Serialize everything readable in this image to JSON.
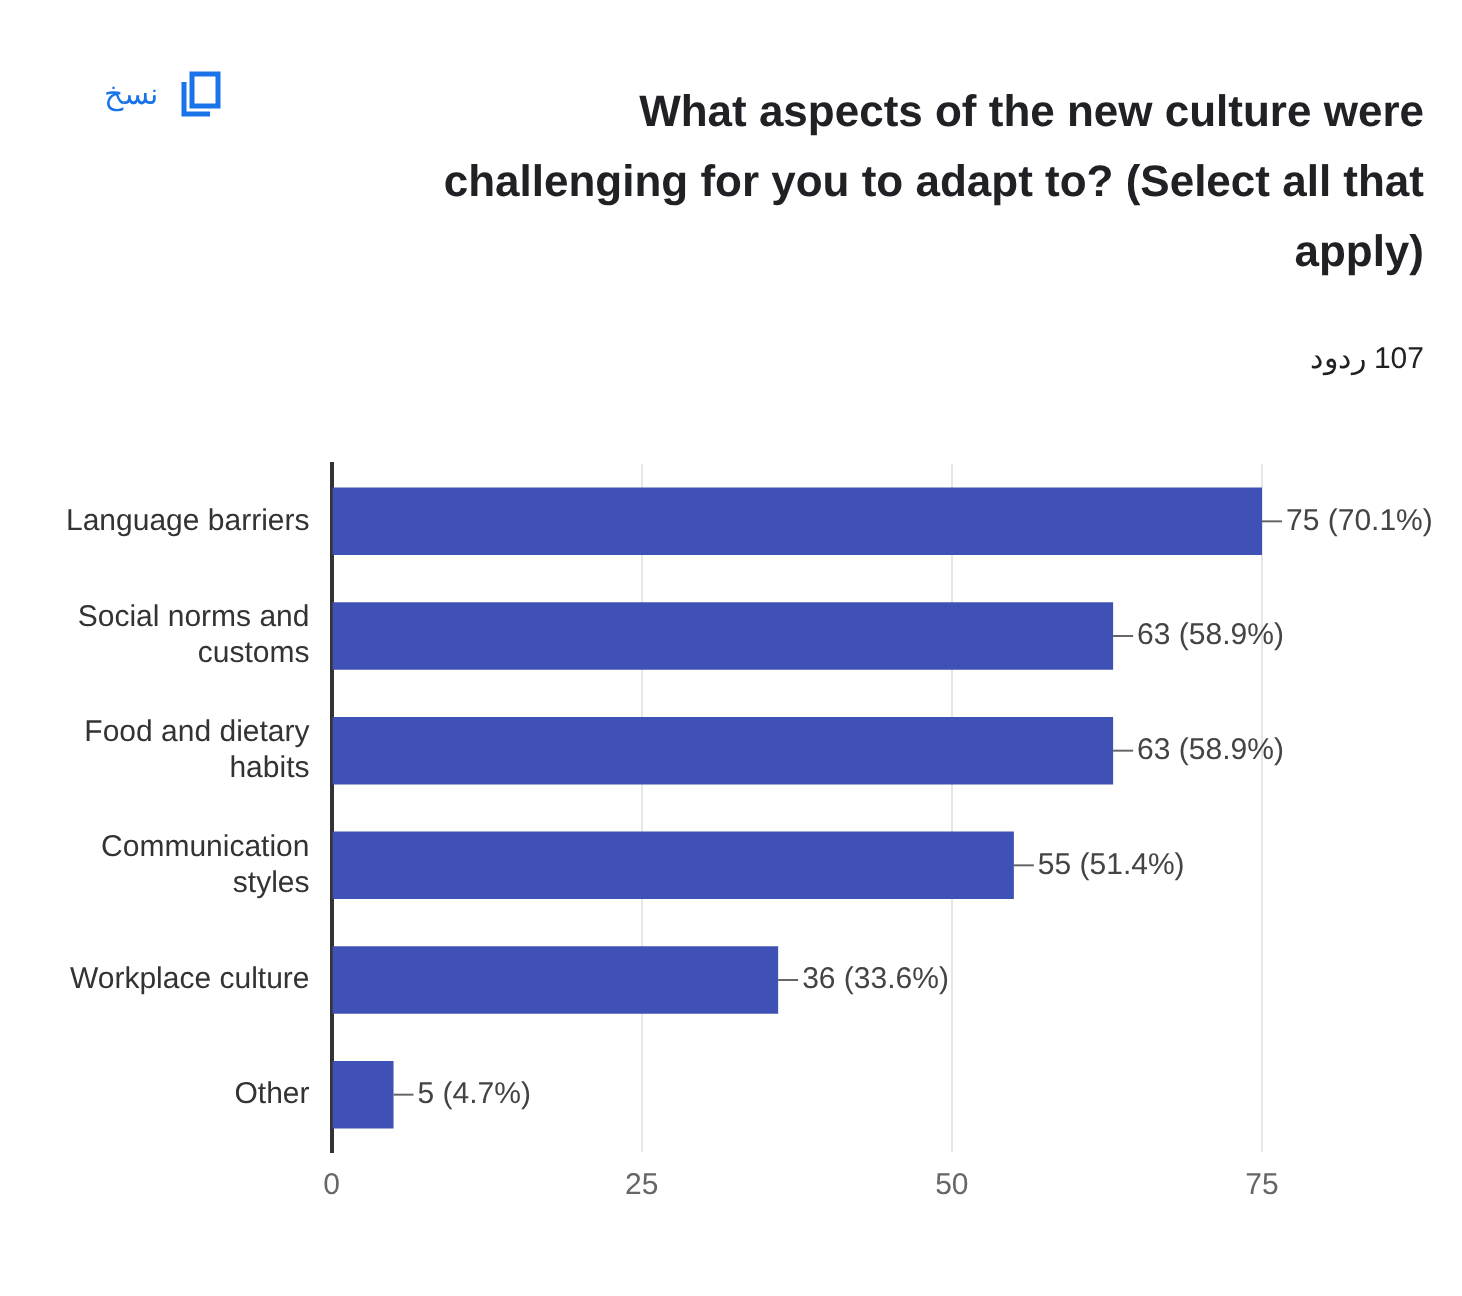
{
  "chart_data": {
    "type": "bar",
    "orientation": "horizontal",
    "title": "What aspects of the new culture were challenging for you to adapt to? (Select all that apply)",
    "subtitle": "107 ردود",
    "annotations": [
      "نسخ"
    ],
    "categories": [
      "Language barriers",
      "Social norms and customs",
      "Food and dietary habits",
      "Communication styles",
      "Workplace culture",
      "Other"
    ],
    "values": [
      75,
      63,
      63,
      55,
      36,
      5
    ],
    "color": "#3f51b5",
    "value_labels": [
      "75 (70.1%)",
      "63 (58.9%)",
      "63 (58.9%)",
      "55 (51.4%)",
      "36 (33.6%)",
      "5 (4.7%)"
    ],
    "xlim": [
      0,
      75
    ],
    "xticks": [
      0,
      25,
      50,
      75
    ],
    "grid": "x",
    "legend": false
  }
}
